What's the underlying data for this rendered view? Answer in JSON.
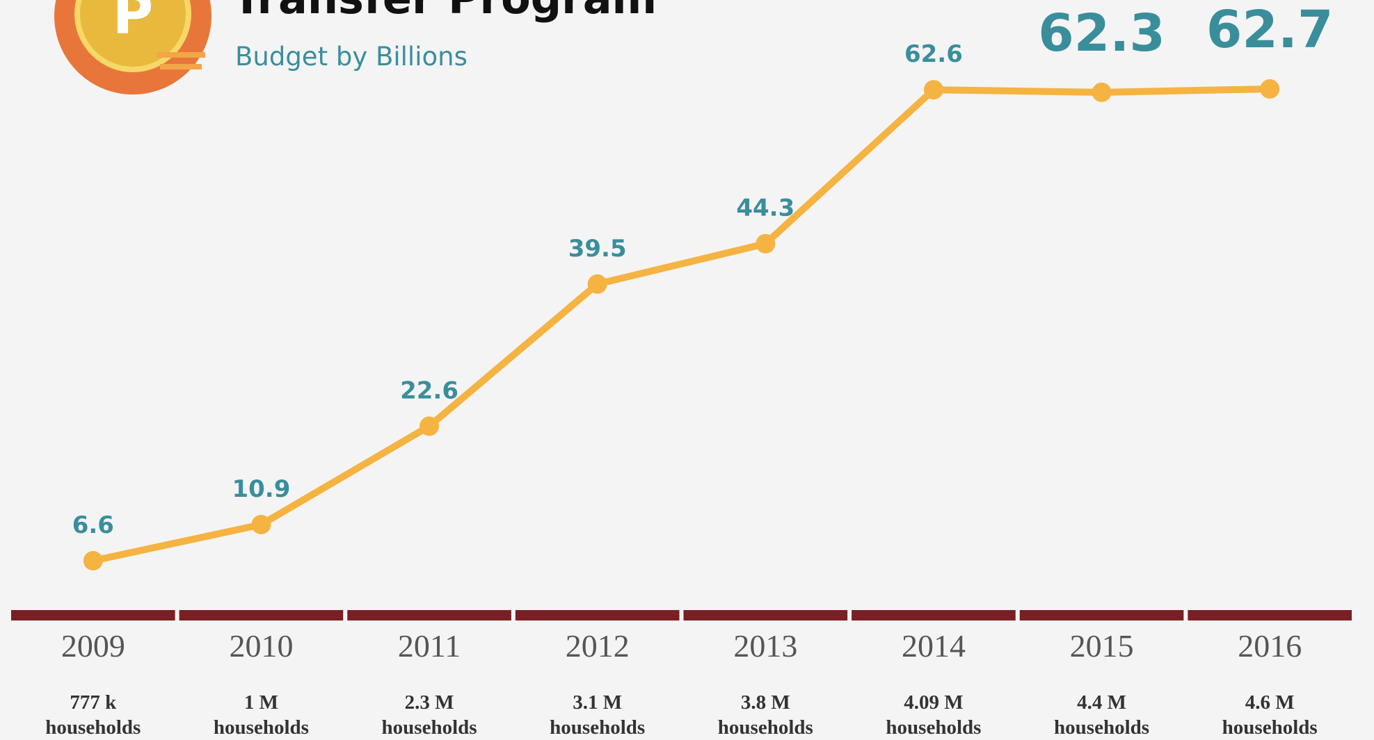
{
  "chart_data": {
    "type": "line",
    "title": "Transfer Program",
    "subtitle": "Budget by Billions",
    "categories": [
      "2009",
      "2010",
      "2011",
      "2012",
      "2013",
      "2014",
      "2015",
      "2016"
    ],
    "household_labels": [
      [
        "777 k",
        "households"
      ],
      [
        "1 M",
        "households"
      ],
      [
        "2.3 M",
        "households"
      ],
      [
        "3.1 M",
        "households"
      ],
      [
        "3.8 M",
        "households"
      ],
      [
        "4.09 M",
        "households"
      ],
      [
        "4.4 M",
        "households"
      ],
      [
        "4.6 M",
        "households"
      ]
    ],
    "series": [
      {
        "name": "Budget",
        "color": "#f5b342",
        "values": [
          6.6,
          10.9,
          22.6,
          39.5,
          44.3,
          62.6,
          62.3,
          62.7
        ]
      }
    ],
    "axis_color": "#7a1f24"
  }
}
